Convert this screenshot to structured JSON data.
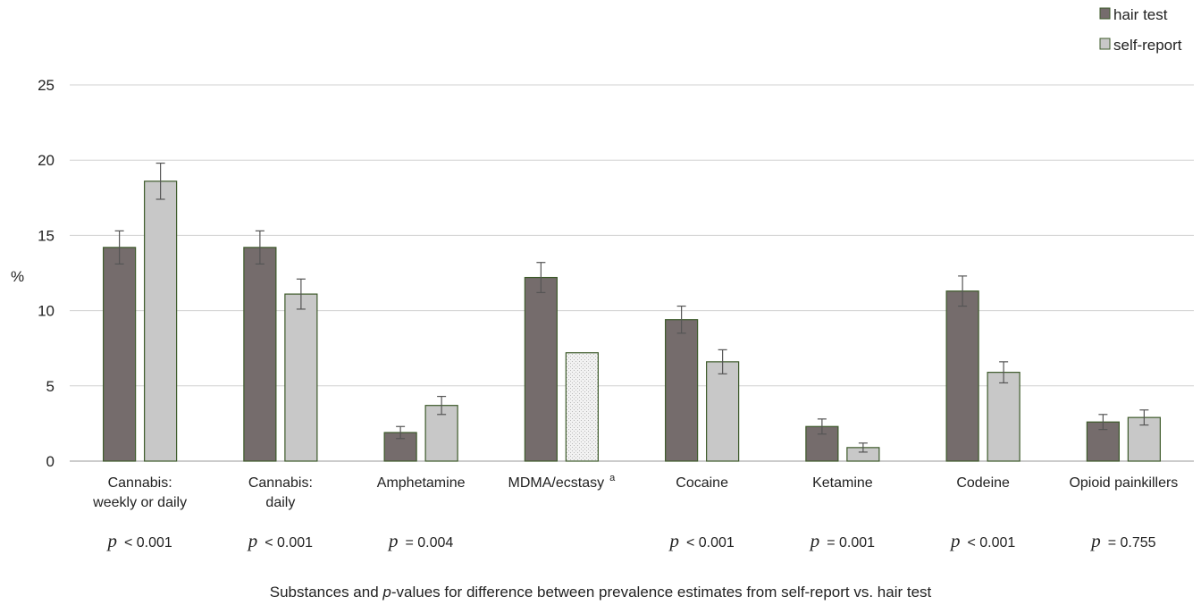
{
  "chart_data": {
    "type": "bar",
    "ylabel": "%",
    "xlabel_parts": [
      "Substances and ",
      "p",
      "-values for difference between prevalence estimates from self-report vs. hair test"
    ],
    "ylim": [
      0,
      25
    ],
    "yticks": [
      0,
      5,
      10,
      15,
      20,
      25
    ],
    "grid": true,
    "legend_position": "top-right",
    "categories": [
      {
        "lines": [
          "Cannabis:",
          "weekly or daily"
        ],
        "sup": ""
      },
      {
        "lines": [
          "Cannabis:",
          "daily"
        ],
        "sup": ""
      },
      {
        "lines": [
          "Amphetamine"
        ],
        "sup": ""
      },
      {
        "lines": [
          "MDMA/ecstasy"
        ],
        "sup": "a"
      },
      {
        "lines": [
          "Cocaine"
        ],
        "sup": ""
      },
      {
        "lines": [
          "Ketamine"
        ],
        "sup": ""
      },
      {
        "lines": [
          "Codeine"
        ],
        "sup": ""
      },
      {
        "lines": [
          "Opioid painkillers"
        ],
        "sup": ""
      }
    ],
    "p_values": [
      {
        "p": "p",
        "text": "< 0.001"
      },
      {
        "p": "p",
        "text": "< 0.001"
      },
      {
        "p": "p",
        "text": "= 0.004"
      },
      {
        "p": "",
        "text": ""
      },
      {
        "p": "p",
        "text": "< 0.001"
      },
      {
        "p": "p",
        "text": "= 0.001"
      },
      {
        "p": "p",
        "text": "< 0.001"
      },
      {
        "p": "p",
        "text": "= 0.755"
      }
    ],
    "series": [
      {
        "name": "hair test",
        "color": "#756c6c",
        "values": [
          14.2,
          14.2,
          1.9,
          12.2,
          9.4,
          2.3,
          11.3,
          2.6
        ],
        "err_low": [
          13.1,
          13.1,
          1.5,
          11.2,
          8.5,
          1.8,
          10.3,
          2.1
        ],
        "err_high": [
          15.3,
          15.3,
          2.3,
          13.2,
          10.3,
          2.8,
          12.3,
          3.1
        ]
      },
      {
        "name": "self-report",
        "color": "#c8c8c8",
        "values": [
          18.6,
          11.1,
          3.7,
          7.2,
          6.6,
          0.9,
          5.9,
          2.9
        ],
        "err_low": [
          17.4,
          10.1,
          3.1,
          null,
          5.8,
          0.6,
          5.2,
          2.4
        ],
        "err_high": [
          19.8,
          12.1,
          4.3,
          null,
          7.4,
          1.2,
          6.6,
          3.4
        ],
        "hatched": [
          false,
          false,
          false,
          true,
          false,
          false,
          false,
          false
        ]
      }
    ]
  }
}
